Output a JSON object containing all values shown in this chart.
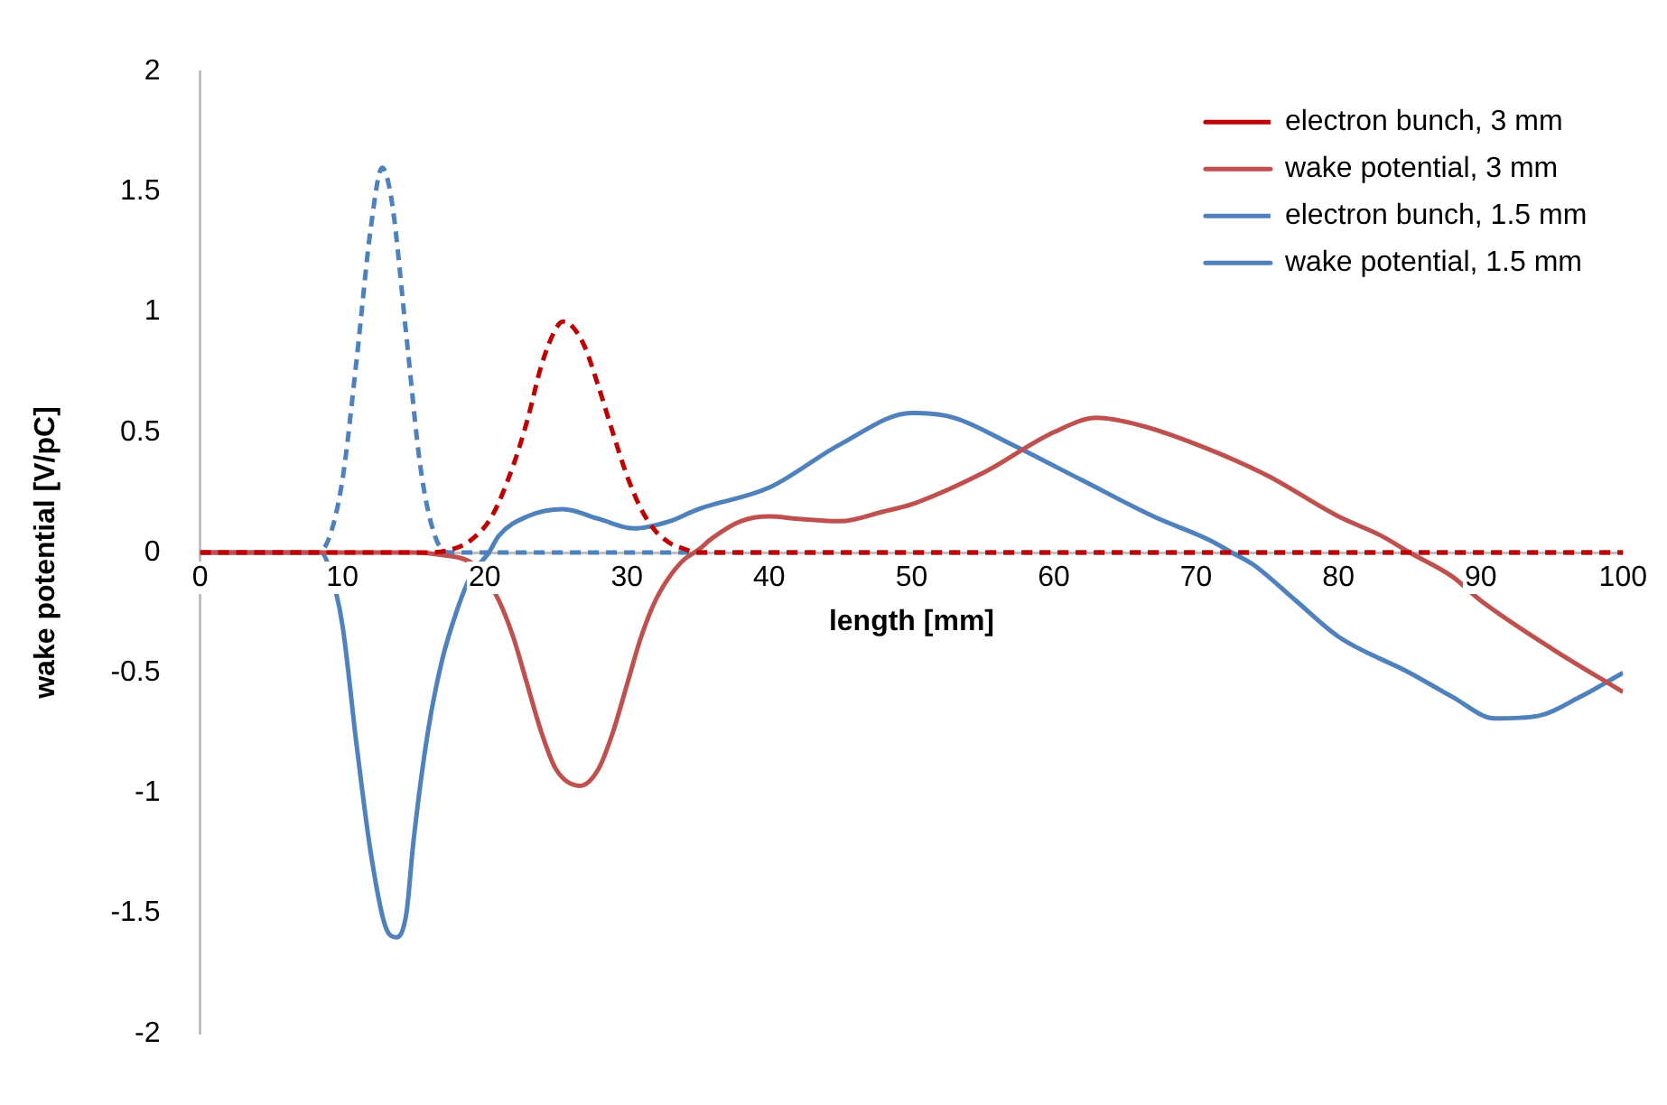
{
  "chart_data": {
    "type": "line",
    "xlabel": "length [mm]",
    "ylabel": "wake potential [V/pC]",
    "xlim": [
      0,
      100
    ],
    "ylim": [
      -2,
      2
    ],
    "xticks": [
      0,
      10,
      20,
      30,
      40,
      50,
      60,
      70,
      80,
      90,
      100
    ],
    "yticks": [
      -2,
      -1.5,
      -1,
      -0.5,
      0,
      0.5,
      1,
      1.5,
      2
    ],
    "grid": false,
    "legend": "top right",
    "marker": "none",
    "series": [
      {
        "name": "electron bunch, 3 mm",
        "color": "#c00000",
        "line_style": "dashed",
        "x": [
          0,
          16,
          17.5,
          19,
          20.5,
          22,
          23,
          24,
          25,
          25.5,
          26,
          27,
          28,
          29,
          30,
          31,
          32,
          33,
          34,
          35,
          100
        ],
        "values": [
          0,
          0,
          0.01,
          0.05,
          0.15,
          0.36,
          0.55,
          0.78,
          0.93,
          0.96,
          0.95,
          0.86,
          0.69,
          0.5,
          0.32,
          0.18,
          0.09,
          0.04,
          0.015,
          0,
          0
        ]
      },
      {
        "name": "wake potential, 3 mm",
        "color": "#c0504d",
        "line_style": "solid",
        "x": [
          0,
          15,
          17,
          19,
          20,
          21,
          22,
          23,
          24,
          25,
          26.7,
          28,
          29,
          30,
          31,
          32,
          33,
          34,
          35,
          36,
          38,
          40,
          42,
          45,
          48,
          50,
          55,
          60,
          63,
          66,
          70,
          75,
          80,
          83,
          85,
          88,
          90,
          95,
          100
        ],
        "values": [
          0,
          0,
          -0.01,
          -0.04,
          -0.1,
          -0.2,
          -0.35,
          -0.55,
          -0.75,
          -0.9,
          -0.97,
          -0.9,
          -0.75,
          -0.55,
          -0.35,
          -0.2,
          -0.1,
          -0.03,
          0.01,
          0.06,
          0.13,
          0.15,
          0.14,
          0.13,
          0.17,
          0.2,
          0.33,
          0.5,
          0.56,
          0.53,
          0.45,
          0.32,
          0.15,
          0.07,
          0,
          -0.1,
          -0.2,
          -0.4,
          -0.58
        ]
      },
      {
        "name": "electron bunch, 1.5 mm",
        "color": "#4f81bd",
        "line_style": "dashed",
        "x": [
          0,
          8,
          9,
          10,
          11,
          12,
          12.8,
          13.5,
          14.5,
          15.5,
          16.5,
          17.5,
          100
        ],
        "values": [
          0,
          0,
          0.05,
          0.3,
          0.8,
          1.35,
          1.6,
          1.45,
          0.9,
          0.35,
          0.07,
          0,
          0
        ]
      },
      {
        "name": "wake potential, 1.5 mm",
        "color": "#4f81bd",
        "line_style": "solid",
        "x": [
          0,
          8.5,
          9,
          10,
          11,
          12,
          13,
          13.8,
          14.5,
          15,
          16,
          17,
          18,
          19,
          20.3,
          21,
          23,
          25.5,
          28,
          30.5,
          33,
          35,
          40,
          45,
          50,
          53,
          57,
          62,
          67,
          71,
          72.5,
          74,
          77,
          80,
          85,
          88,
          91,
          94,
          97,
          100
        ],
        "values": [
          0,
          0,
          -0.05,
          -0.3,
          -0.8,
          -1.25,
          -1.55,
          -1.6,
          -1.5,
          -1.2,
          -0.75,
          -0.45,
          -0.25,
          -0.1,
          0,
          0.07,
          0.15,
          0.18,
          0.14,
          0.1,
          0.13,
          0.18,
          0.27,
          0.45,
          0.58,
          0.56,
          0.45,
          0.3,
          0.15,
          0.05,
          0,
          -0.05,
          -0.2,
          -0.35,
          -0.5,
          -0.6,
          -0.69,
          -0.68,
          -0.6,
          -0.5
        ]
      }
    ]
  }
}
